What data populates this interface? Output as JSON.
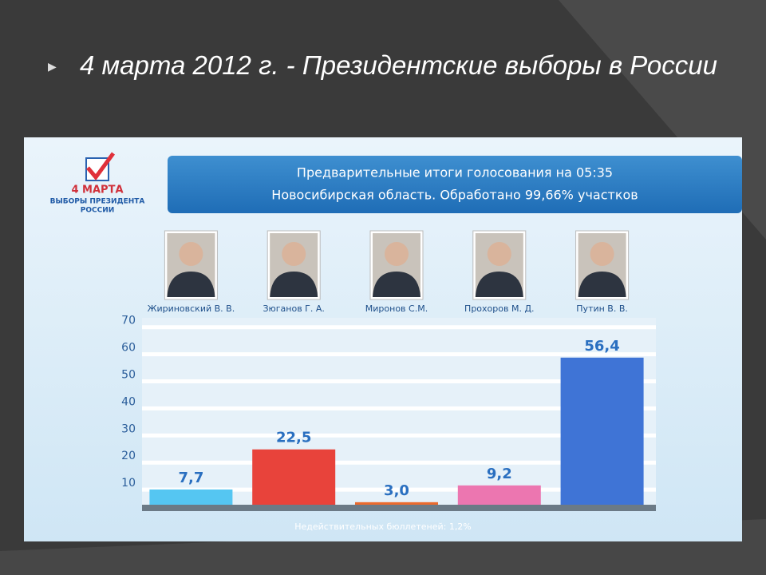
{
  "slide": {
    "title": "4 марта 2012 г. - Президентские выборы в России"
  },
  "logo": {
    "line1": "4 МАРТА",
    "line2": "ВЫБОРЫ ПРЕЗИДЕНТА",
    "line3": "РОССИИ"
  },
  "chart_data": {
    "type": "bar",
    "title": "Предварительные итоги голосования на 05:35",
    "subtitle": "Новосибирская область. Обработано 99,66% участков",
    "categories": [
      "Жириновский В. В.",
      "Зюганов Г. А.",
      "Миронов С.М.",
      "Прохоров М. Д.",
      "Путин В. В."
    ],
    "values": [
      7.7,
      22.5,
      3.0,
      9.2,
      56.4
    ],
    "value_labels": [
      "7,7",
      "22,5",
      "3,0",
      "9,2",
      "56,4"
    ],
    "colors": [
      "#55c6f2",
      "#e8433b",
      "#ea6a2e",
      "#ec76b0",
      "#3f74d6"
    ],
    "ylim": [
      0,
      70
    ],
    "yticks": [
      10,
      20,
      30,
      40,
      50,
      60,
      70
    ],
    "grid": true,
    "note": "Недействительных бюллетеней: 1,2%"
  }
}
